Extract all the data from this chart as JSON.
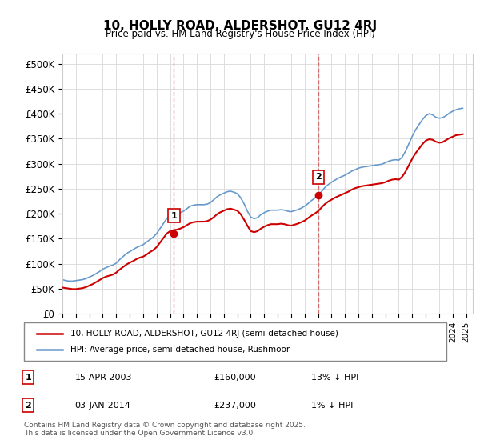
{
  "title": "10, HOLLY ROAD, ALDERSHOT, GU12 4RJ",
  "subtitle": "Price paid vs. HM Land Registry's House Price Index (HPI)",
  "ylabel_ticks": [
    "£0",
    "£50K",
    "£100K",
    "£150K",
    "£200K",
    "£250K",
    "£300K",
    "£350K",
    "£400K",
    "£450K",
    "£500K"
  ],
  "ytick_values": [
    0,
    50000,
    100000,
    150000,
    200000,
    250000,
    300000,
    350000,
    400000,
    450000,
    500000
  ],
  "ylim": [
    0,
    520000
  ],
  "xlim_start": 1995.0,
  "xlim_end": 2025.5,
  "xtick_years": [
    1995,
    1996,
    1997,
    1998,
    1999,
    2000,
    2001,
    2002,
    2003,
    2004,
    2005,
    2006,
    2007,
    2008,
    2009,
    2010,
    2011,
    2012,
    2013,
    2014,
    2015,
    2016,
    2017,
    2018,
    2019,
    2020,
    2021,
    2022,
    2023,
    2024,
    2025
  ],
  "transaction1_x": 2003.29,
  "transaction1_y": 160000,
  "transaction1_label": "1",
  "transaction1_date": "15-APR-2003",
  "transaction1_price": "£160,000",
  "transaction1_hpi": "13% ↓ HPI",
  "transaction2_x": 2014.01,
  "transaction2_y": 237000,
  "transaction2_label": "2",
  "transaction2_date": "03-JAN-2014",
  "transaction2_price": "£237,000",
  "transaction2_hpi": "1% ↓ HPI",
  "vline_color": "#cc0000",
  "vline_alpha": 0.5,
  "red_line_color": "#cc0000",
  "blue_line_color": "#6699cc",
  "background_color": "#ffffff",
  "grid_color": "#dddddd",
  "legend_line1": "10, HOLLY ROAD, ALDERSHOT, GU12 4RJ (semi-detached house)",
  "legend_line2": "HPI: Average price, semi-detached house, Rushmoor",
  "footer": "Contains HM Land Registry data © Crown copyright and database right 2025.\nThis data is licensed under the Open Government Licence v3.0.",
  "hpi_data_x": [
    1995.0,
    1995.25,
    1995.5,
    1995.75,
    1996.0,
    1996.25,
    1996.5,
    1996.75,
    1997.0,
    1997.25,
    1997.5,
    1997.75,
    1998.0,
    1998.25,
    1998.5,
    1998.75,
    1999.0,
    1999.25,
    1999.5,
    1999.75,
    2000.0,
    2000.25,
    2000.5,
    2000.75,
    2001.0,
    2001.25,
    2001.5,
    2001.75,
    2002.0,
    2002.25,
    2002.5,
    2002.75,
    2003.0,
    2003.25,
    2003.5,
    2003.75,
    2004.0,
    2004.25,
    2004.5,
    2004.75,
    2005.0,
    2005.25,
    2005.5,
    2005.75,
    2006.0,
    2006.25,
    2006.5,
    2006.75,
    2007.0,
    2007.25,
    2007.5,
    2007.75,
    2008.0,
    2008.25,
    2008.5,
    2008.75,
    2009.0,
    2009.25,
    2009.5,
    2009.75,
    2010.0,
    2010.25,
    2010.5,
    2010.75,
    2011.0,
    2011.25,
    2011.5,
    2011.75,
    2012.0,
    2012.25,
    2012.5,
    2012.75,
    2013.0,
    2013.25,
    2013.5,
    2013.75,
    2014.0,
    2014.25,
    2014.5,
    2014.75,
    2015.0,
    2015.25,
    2015.5,
    2015.75,
    2016.0,
    2016.25,
    2016.5,
    2016.75,
    2017.0,
    2017.25,
    2017.5,
    2017.75,
    2018.0,
    2018.25,
    2018.5,
    2018.75,
    2019.0,
    2019.25,
    2019.5,
    2019.75,
    2020.0,
    2020.25,
    2020.5,
    2020.75,
    2021.0,
    2021.25,
    2021.5,
    2021.75,
    2022.0,
    2022.25,
    2022.5,
    2022.75,
    2023.0,
    2023.25,
    2023.5,
    2023.75,
    2024.0,
    2024.25,
    2024.5,
    2024.75
  ],
  "hpi_data_y": [
    68000,
    66000,
    65000,
    65000,
    66000,
    67000,
    68000,
    70000,
    73000,
    76000,
    80000,
    84000,
    89000,
    92000,
    95000,
    97000,
    101000,
    108000,
    114000,
    120000,
    124000,
    128000,
    132000,
    135000,
    138000,
    143000,
    148000,
    153000,
    160000,
    170000,
    180000,
    190000,
    196000,
    198000,
    200000,
    202000,
    205000,
    210000,
    215000,
    217000,
    218000,
    218000,
    218000,
    219000,
    222000,
    228000,
    234000,
    238000,
    241000,
    244000,
    245000,
    243000,
    240000,
    232000,
    220000,
    205000,
    193000,
    190000,
    192000,
    198000,
    202000,
    205000,
    207000,
    207000,
    207000,
    208000,
    207000,
    205000,
    204000,
    206000,
    208000,
    211000,
    215000,
    220000,
    226000,
    231000,
    237000,
    244000,
    252000,
    258000,
    263000,
    267000,
    271000,
    274000,
    277000,
    281000,
    285000,
    288000,
    291000,
    293000,
    294000,
    295000,
    296000,
    297000,
    298000,
    299000,
    302000,
    305000,
    307000,
    308000,
    307000,
    313000,
    325000,
    340000,
    355000,
    368000,
    378000,
    388000,
    396000,
    400000,
    398000,
    393000,
    391000,
    392000,
    396000,
    401000,
    405000,
    408000,
    410000,
    411000
  ],
  "red_data_x": [
    1995.0,
    1995.25,
    1995.5,
    1995.75,
    1996.0,
    1996.25,
    1996.5,
    1996.75,
    1997.0,
    1997.25,
    1997.5,
    1997.75,
    1998.0,
    1998.25,
    1998.5,
    1998.75,
    1999.0,
    1999.25,
    1999.5,
    1999.75,
    2000.0,
    2000.25,
    2000.5,
    2000.75,
    2001.0,
    2001.25,
    2001.5,
    2001.75,
    2002.0,
    2002.25,
    2002.5,
    2002.75,
    2003.0,
    2003.25,
    2003.5,
    2003.75,
    2004.0,
    2004.25,
    2004.5,
    2004.75,
    2005.0,
    2005.25,
    2005.5,
    2005.75,
    2006.0,
    2006.25,
    2006.5,
    2006.75,
    2007.0,
    2007.25,
    2007.5,
    2007.75,
    2008.0,
    2008.25,
    2008.5,
    2008.75,
    2009.0,
    2009.25,
    2009.5,
    2009.75,
    2010.0,
    2010.25,
    2010.5,
    2010.75,
    2011.0,
    2011.25,
    2011.5,
    2011.75,
    2012.0,
    2012.25,
    2012.5,
    2012.75,
    2013.0,
    2013.25,
    2013.5,
    2013.75,
    2014.0,
    2014.25,
    2014.5,
    2014.75,
    2015.0,
    2015.25,
    2015.5,
    2015.75,
    2016.0,
    2016.25,
    2016.5,
    2016.75,
    2017.0,
    2017.25,
    2017.5,
    2017.75,
    2018.0,
    2018.25,
    2018.5,
    2018.75,
    2019.0,
    2019.25,
    2019.5,
    2019.75,
    2020.0,
    2020.25,
    2020.5,
    2020.75,
    2021.0,
    2021.25,
    2021.5,
    2021.75,
    2022.0,
    2022.25,
    2022.5,
    2022.75,
    2023.0,
    2023.25,
    2023.5,
    2023.75,
    2024.0,
    2024.25,
    2024.5,
    2024.75
  ],
  "red_data_y": [
    52000,
    51000,
    50000,
    49000,
    49000,
    50000,
    51000,
    53000,
    56000,
    59000,
    63000,
    67000,
    71000,
    74000,
    76000,
    78000,
    82000,
    88000,
    93000,
    98000,
    102000,
    105000,
    109000,
    112000,
    114000,
    118000,
    123000,
    127000,
    133000,
    142000,
    151000,
    160000,
    165000,
    167000,
    168000,
    170000,
    173000,
    177000,
    181000,
    183000,
    184000,
    184000,
    184000,
    185000,
    188000,
    193000,
    199000,
    203000,
    206000,
    209000,
    210000,
    208000,
    206000,
    199000,
    188000,
    176000,
    165000,
    163000,
    165000,
    170000,
    174000,
    177000,
    179000,
    179000,
    179000,
    180000,
    179000,
    177000,
    176000,
    178000,
    180000,
    183000,
    186000,
    191000,
    196000,
    200000,
    205000,
    212000,
    219000,
    224000,
    228000,
    232000,
    235000,
    238000,
    241000,
    244000,
    248000,
    251000,
    253000,
    255000,
    256000,
    257000,
    258000,
    259000,
    260000,
    261000,
    263000,
    266000,
    268000,
    269000,
    268000,
    274000,
    284000,
    297000,
    310000,
    321000,
    330000,
    339000,
    346000,
    349000,
    348000,
    344000,
    342000,
    343000,
    347000,
    351000,
    354000,
    357000,
    358000,
    359000
  ]
}
